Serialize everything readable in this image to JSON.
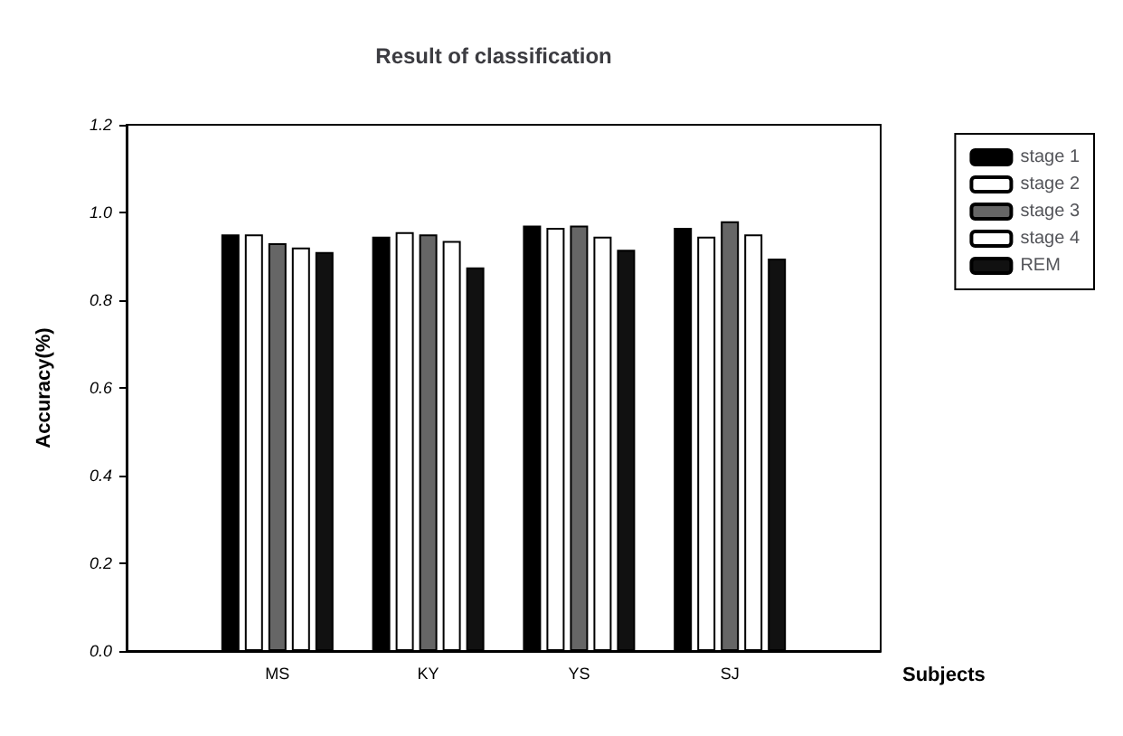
{
  "chart_data": {
    "type": "bar",
    "title": "Result of classification",
    "xlabel": "Subjects",
    "ylabel": "Accuracy(%)",
    "categories": [
      null,
      "MS",
      "KY",
      "YS",
      "SJ",
      null
    ],
    "series": [
      {
        "name": "stage 1",
        "color": "#000000",
        "values": [
          null,
          0.95,
          0.945,
          0.97,
          0.965,
          null
        ]
      },
      {
        "name": "stage 2",
        "color": "#ffffff",
        "values": [
          null,
          0.95,
          0.955,
          0.965,
          0.945,
          null
        ]
      },
      {
        "name": "stage 3",
        "color": "#666666",
        "values": [
          null,
          0.93,
          0.95,
          0.97,
          0.98,
          null
        ]
      },
      {
        "name": "stage 4",
        "color": "#ffffff",
        "values": [
          null,
          0.92,
          0.935,
          0.945,
          0.95,
          null
        ]
      },
      {
        "name": "REM",
        "color": "#111111",
        "values": [
          null,
          0.91,
          0.875,
          0.915,
          0.895,
          null
        ]
      }
    ],
    "ylim": [
      0,
      1.2
    ],
    "yticks": [
      {
        "value": 0,
        "label": "0.0"
      },
      0.2,
      0.4,
      0.6,
      0.8,
      {
        "value": 1,
        "label": "1.0"
      },
      1.2
    ],
    "grid": false,
    "legend": "top right"
  }
}
